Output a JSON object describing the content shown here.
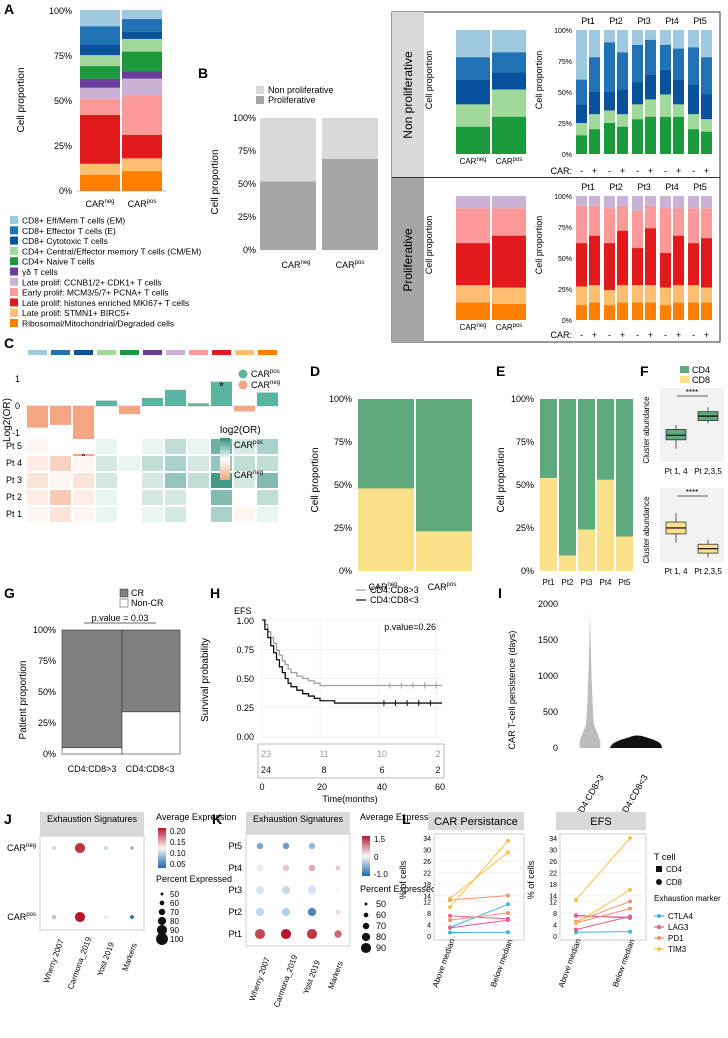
{
  "colors": {
    "em": "#9ecae1",
    "eff": "#2171b5",
    "cyto": "#08519c",
    "cm": "#a1d99b",
    "naive": "#1a9a3a",
    "gd": "#6a3d9a",
    "late_ccnb": "#cab2d6",
    "early": "#fb9a99",
    "late_his": "#e31a1c",
    "late_stmn": "#fdbf6f",
    "ribo": "#ff7f00",
    "cd4": "#5fa97e",
    "cd8": "#fde18a",
    "cr_dark": "#808080",
    "nonprolif": "#d9d9d9",
    "prolif": "#a6a6a6",
    "teal": "#5ab4a0",
    "salmon": "#f4a582"
  },
  "panelA": {
    "label": "A",
    "ylabel": "Cell proportion",
    "ticks": [
      "100%",
      "75%",
      "50%",
      "25%",
      "0%"
    ],
    "bars": [
      {
        "name": "CAR",
        "sup": "neg",
        "values": [
          0.09,
          0.1,
          0.06,
          0.06,
          0.07,
          0.05,
          0.06,
          0.09,
          0.27,
          0.06,
          0.09
        ]
      },
      {
        "name": "CAR",
        "sup": "pos",
        "values": [
          0.05,
          0.07,
          0.04,
          0.07,
          0.11,
          0.04,
          0.09,
          0.22,
          0.13,
          0.07,
          0.11
        ]
      }
    ],
    "legend": [
      "CD8+ Eff/Mem T cells (EM)",
      "CD8+ Effector T cells (E)",
      "CD8+ Cytotoxic T cells",
      "CD4+ Central/Effector memory T cells (CM/EM)",
      "CD4+ Naive T cells",
      "γδ T cells",
      "Late prolif: CCNB1/2+ CDK1+ T cells",
      "Early prolif: MCM3/5/7+ PCNA+ T cells",
      "Late prolif: histones enriched MKI67+ T cells",
      "Late prolif: STMN1+ BIRC5+",
      "Ribosomal/Mitochondrial/Degraded cells"
    ]
  },
  "panelB": {
    "label": "B",
    "legend": [
      "Non proliferative",
      "Proliferative"
    ],
    "ylabel": "Cell proportion",
    "ticks": [
      "100%",
      "75%",
      "50%",
      "25%",
      "0%"
    ],
    "bars": [
      {
        "name": "CAR",
        "sup": "neg",
        "nonprolif": 0.48,
        "prolif": 0.52
      },
      {
        "name": "CAR",
        "sup": "pos",
        "nonprolif": 0.31,
        "prolif": 0.69
      }
    ],
    "row_top": "Non proliferative",
    "row_bottom": "Proliferative",
    "car_label": "CAR:",
    "patients": [
      "Pt1",
      "Pt2",
      "Pt3",
      "Pt4",
      "Pt5"
    ],
    "signs": [
      "-",
      "+"
    ]
  },
  "panelC": {
    "label": "C",
    "ylabel": "Log2(OR)",
    "ticks": [
      "1",
      "0",
      "-1"
    ],
    "bar_values": [
      -0.8,
      -0.7,
      -2.1,
      0.2,
      -0.3,
      0.3,
      0.6,
      0.1,
      0.9,
      -0.2,
      0.5
    ],
    "stars": [
      "*",
      "*"
    ],
    "legend": [
      {
        "name": "CAR",
        "sup": "pos"
      },
      {
        "name": "CAR",
        "sup": "neg"
      }
    ],
    "rows": [
      "Pt 5",
      "Pt 4",
      "Pt 3",
      "Pt 2",
      "Pt 1"
    ],
    "heatmap": [
      [
        -0.1,
        0.0,
        0.0,
        0.1,
        0.0,
        0.1,
        0.3,
        0.1,
        0.7,
        0.2,
        0.4
      ],
      [
        -0.2,
        -0.5,
        -0.1,
        0.2,
        0.1,
        0.3,
        0.4,
        0.2,
        0.5,
        0.3,
        0.3
      ],
      [
        -0.3,
        -0.1,
        -0.3,
        0.2,
        0.0,
        0.2,
        0.5,
        0.3,
        0.9,
        0.2,
        0.6
      ],
      [
        -0.2,
        -0.6,
        -0.2,
        0.1,
        0.0,
        0.2,
        0.2,
        0.0,
        0.6,
        0.0,
        0.3
      ],
      [
        -0.1,
        -0.3,
        -0.1,
        0.1,
        0.0,
        0.1,
        0.2,
        0.0,
        0.4,
        -0.1,
        0.1
      ]
    ],
    "scale_title": "log2(OR)",
    "scale_pos": {
      "name": "CAR",
      "sup": "pos"
    },
    "scale_neg": {
      "name": "CAR",
      "sup": "neg"
    }
  },
  "panelD": {
    "label": "D",
    "ylabel": "Cell proportion",
    "ticks": [
      "100%",
      "75%",
      "50%",
      "25%",
      "0%"
    ],
    "bars": [
      {
        "name": "CAR",
        "sup": "neg",
        "cd4": 0.52,
        "cd8": 0.48
      },
      {
        "name": "CAR",
        "sup": "pos",
        "cd4": 0.77,
        "cd8": 0.23
      }
    ]
  },
  "panelE": {
    "label": "E",
    "ylabel": "Cell proportion",
    "ticks": [
      "100%",
      "75%",
      "50%",
      "25%",
      "0%"
    ],
    "bars": [
      {
        "name": "Pt1",
        "cd4": 0.46,
        "cd8": 0.54
      },
      {
        "name": "Pt2",
        "cd4": 0.91,
        "cd8": 0.09
      },
      {
        "name": "Pt3",
        "cd4": 0.76,
        "cd8": 0.24
      },
      {
        "name": "Pt4",
        "cd4": 0.47,
        "cd8": 0.53
      },
      {
        "name": "Pt5",
        "cd4": 0.8,
        "cd8": 0.2
      }
    ]
  },
  "panelF": {
    "label": "F",
    "legend": [
      "CD4",
      "CD8"
    ],
    "ylabel": "Cluster abundance",
    "groups": [
      "Pt 1, 4",
      "Pt 2,3,5"
    ],
    "sig": "****",
    "cd4_boxes": [
      {
        "min": 0.18,
        "q1": 0.3,
        "med": 0.36,
        "q3": 0.44,
        "max": 0.5
      },
      {
        "min": 0.52,
        "q1": 0.56,
        "med": 0.62,
        "q3": 0.68,
        "max": 0.74
      }
    ],
    "cd8_boxes": [
      {
        "min": 0.26,
        "q1": 0.38,
        "med": 0.46,
        "q3": 0.54,
        "max": 0.66
      },
      {
        "min": 0.06,
        "q1": 0.12,
        "med": 0.18,
        "q3": 0.24,
        "max": 0.3
      }
    ]
  },
  "panelG": {
    "label": "G",
    "legend": [
      "CR",
      "Non-CR"
    ],
    "pvalue": "p.value = 0.03",
    "ylabel": "Patient proportion",
    "ticks": [
      "100%",
      "75%",
      "50%",
      "25%",
      "0%"
    ],
    "bars": [
      {
        "name": "CD4:CD8>3",
        "cr": 0.95,
        "noncr": 0.05
      },
      {
        "name": "CD4:CD8<3",
        "cr": 0.66,
        "noncr": 0.34
      }
    ]
  },
  "panelH": {
    "label": "H",
    "title": "EFS",
    "legend": [
      "CD4:CD8>3",
      "CD4:CD8<3"
    ],
    "pvalue": "p.value=0.26",
    "ylabel": "Survival probability",
    "yticks": [
      "1.00",
      "0.75",
      "0.50",
      "0.25",
      "0.00"
    ],
    "xticks": [
      "0",
      "20",
      "40",
      "60"
    ],
    "xlabel": "Time(months)",
    "risk_gray": [
      "23",
      "11",
      "10",
      "2"
    ],
    "risk_black": [
      "24",
      "8",
      "6",
      "2"
    ],
    "curve_gray": [
      [
        0,
        1.0
      ],
      [
        1,
        0.96
      ],
      [
        2,
        0.9
      ],
      [
        3,
        0.85
      ],
      [
        4,
        0.8
      ],
      [
        5,
        0.74
      ],
      [
        6,
        0.7
      ],
      [
        7,
        0.65
      ],
      [
        8,
        0.62
      ],
      [
        9,
        0.58
      ],
      [
        10,
        0.55
      ],
      [
        12,
        0.52
      ],
      [
        14,
        0.5
      ],
      [
        16,
        0.48
      ],
      [
        18,
        0.46
      ],
      [
        20,
        0.44
      ],
      [
        62,
        0.44
      ]
    ],
    "curve_black": [
      [
        0,
        1.0
      ],
      [
        1,
        0.92
      ],
      [
        2,
        0.85
      ],
      [
        3,
        0.78
      ],
      [
        4,
        0.72
      ],
      [
        5,
        0.66
      ],
      [
        6,
        0.6
      ],
      [
        7,
        0.55
      ],
      [
        8,
        0.5
      ],
      [
        9,
        0.46
      ],
      [
        10,
        0.43
      ],
      [
        12,
        0.4
      ],
      [
        14,
        0.37
      ],
      [
        16,
        0.35
      ],
      [
        18,
        0.33
      ],
      [
        20,
        0.31
      ],
      [
        25,
        0.29
      ],
      [
        62,
        0.29
      ]
    ]
  },
  "panelI": {
    "label": "I",
    "ylabel": "CAR T-cell persistence (days)",
    "ticks": [
      "2000",
      "1500",
      "1000",
      "500",
      "0"
    ],
    "groups": [
      "CD4:CD8>3",
      "CD4:CD8<3"
    ]
  },
  "panelJ": {
    "label": "J",
    "header": "Exhaustion Signatures",
    "rows": [
      {
        "name": "CAR",
        "sup": "neg"
      },
      {
        "name": "CAR",
        "sup": "pos"
      }
    ],
    "cols": [
      "Wherry 2007",
      "Carmona_2019",
      "Yost 2019",
      "Markers"
    ],
    "dots": [
      [
        {
          "c": 0.12,
          "s": 60
        },
        {
          "c": 0.21,
          "s": 90
        },
        {
          "c": 0.12,
          "s": 60
        },
        {
          "c": 0.08,
          "s": 50
        }
      ],
      [
        {
          "c": 0.11,
          "s": 60
        },
        {
          "c": 0.22,
          "s": 90
        },
        {
          "c": 0.13,
          "s": 60
        },
        {
          "c": 0.05,
          "s": 55
        }
      ]
    ],
    "scale_title": "Average Expression",
    "scale_ticks": [
      "0.20",
      "0.15",
      "0.10",
      "0.05"
    ],
    "size_title": "Percent Expressed",
    "size_ticks": [
      "50",
      "60",
      "70",
      "80",
      "90",
      "100"
    ]
  },
  "panelK": {
    "label": "K",
    "header": "Exhaustion Signatures",
    "rows": [
      "Pt5",
      "Pt4",
      "Pt3",
      "Pt2",
      "Pt1"
    ],
    "cols": [
      "Wherry 2007",
      "Carmona_2019",
      "Yost 2019",
      "Markers"
    ],
    "dots": [
      [
        {
          "c": -0.8,
          "s": 70
        },
        {
          "c": -0.9,
          "s": 70
        },
        {
          "c": -0.6,
          "s": 70
        },
        {
          "c": 0.0,
          "s": 50
        }
      ],
      [
        {
          "c": 0.1,
          "s": 70
        },
        {
          "c": 0.3,
          "s": 70
        },
        {
          "c": 0.5,
          "s": 70
        },
        {
          "c": 0.3,
          "s": 60
        }
      ],
      [
        {
          "c": -0.2,
          "s": 80
        },
        {
          "c": -0.3,
          "s": 80
        },
        {
          "c": -0.2,
          "s": 80
        },
        {
          "c": 0.0,
          "s": 55
        }
      ],
      [
        {
          "c": -0.3,
          "s": 80
        },
        {
          "c": -0.4,
          "s": 80
        },
        {
          "c": -1.1,
          "s": 80
        },
        {
          "c": 0.2,
          "s": 60
        }
      ],
      [
        {
          "c": 1.1,
          "s": 90
        },
        {
          "c": 1.4,
          "s": 90
        },
        {
          "c": 1.2,
          "s": 90
        },
        {
          "c": 0.9,
          "s": 75
        }
      ]
    ],
    "scale_title": "Average Expression",
    "scale_ticks": [
      "1.5",
      "0",
      "-1.0"
    ],
    "size_title": "Percent Expressed",
    "size_ticks": [
      "50",
      "60",
      "70",
      "80",
      "90"
    ]
  },
  "panelL": {
    "label": "L",
    "title_left": "CAR Persistance",
    "title_right": "EFS",
    "yticks": [
      "34",
      "30",
      "26",
      "22",
      "18",
      "14",
      "12",
      "8",
      "4",
      "0"
    ],
    "ylabel": "% of cells",
    "xcats": [
      "Above median",
      "Below median"
    ],
    "legend_title_t": "T cell",
    "legend_t": [
      "CD4",
      "CD8"
    ],
    "legend_title_m": "Exhaustion marker",
    "legend_m": [
      "CTLA4",
      "LAG3",
      "PD1",
      "TIM3"
    ],
    "marker_colors": [
      "#3fb6e0",
      "#ee5a8a",
      "#f4906a",
      "#f8c14a"
    ],
    "left_lines": [
      {
        "m": 0,
        "a": 1.2,
        "b": 1.3
      },
      {
        "m": 0,
        "a": 3.0,
        "b": 11.0
      },
      {
        "m": 1,
        "a": 2.8,
        "b": 5.5
      },
      {
        "m": 1,
        "a": 7.0,
        "b": 6.0
      },
      {
        "m": 2,
        "a": 5.5,
        "b": 8.0
      },
      {
        "m": 2,
        "a": 12.5,
        "b": 14.0
      },
      {
        "m": 3,
        "a": 10.0,
        "b": 33.0
      },
      {
        "m": 3,
        "a": 13.0,
        "b": 29.0
      }
    ],
    "right_lines": [
      {
        "m": 0,
        "a": 1.3,
        "b": 1.5
      },
      {
        "m": 0,
        "a": 7.2,
        "b": 6.2
      },
      {
        "m": 1,
        "a": 2.2,
        "b": 6.8
      },
      {
        "m": 1,
        "a": 7.0,
        "b": 6.5
      },
      {
        "m": 2,
        "a": 4.5,
        "b": 9.5
      },
      {
        "m": 2,
        "a": 5.0,
        "b": 12.0
      },
      {
        "m": 3,
        "a": 12.5,
        "b": 34.0
      },
      {
        "m": 3,
        "a": 4.5,
        "b": 16.0
      }
    ]
  },
  "chart_data": [
    {
      "type": "bar",
      "title": "A",
      "categories": [
        "CARneg",
        "CARpos"
      ],
      "ylabel": "Cell proportion",
      "ylim": [
        0,
        1
      ]
    },
    {
      "type": "bar",
      "title": "B",
      "categories": [
        "CARneg",
        "CARpos"
      ],
      "series": [
        {
          "name": "Proliferative",
          "values": [
            0.52,
            0.69
          ]
        },
        {
          "name": "Non proliferative",
          "values": [
            0.48,
            0.31
          ]
        }
      ]
    },
    {
      "type": "bar",
      "title": "D",
      "categories": [
        "CARneg",
        "CARpos"
      ],
      "series": [
        {
          "name": "CD8",
          "values": [
            0.48,
            0.23
          ]
        },
        {
          "name": "CD4",
          "values": [
            0.52,
            0.77
          ]
        }
      ]
    },
    {
      "type": "bar",
      "title": "E",
      "categories": [
        "Pt1",
        "Pt2",
        "Pt3",
        "Pt4",
        "Pt5"
      ],
      "series": [
        {
          "name": "CD8",
          "values": [
            0.54,
            0.09,
            0.24,
            0.53,
            0.2
          ]
        },
        {
          "name": "CD4",
          "values": [
            0.46,
            0.91,
            0.76,
            0.47,
            0.8
          ]
        }
      ]
    },
    {
      "type": "bar",
      "title": "G",
      "categories": [
        "CD4:CD8>3",
        "CD4:CD8<3"
      ],
      "series": [
        {
          "name": "CR",
          "values": [
            0.95,
            0.66
          ]
        },
        {
          "name": "Non-CR",
          "values": [
            0.05,
            0.34
          ]
        }
      ]
    },
    {
      "type": "line",
      "title": "EFS",
      "xlabel": "Time(months)",
      "ylabel": "Survival probability",
      "ylim": [
        0,
        1
      ]
    }
  ]
}
